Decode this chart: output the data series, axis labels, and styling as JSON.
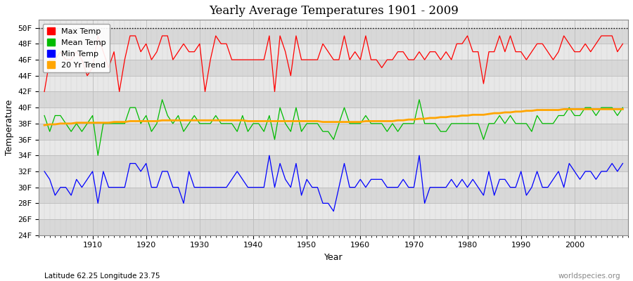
{
  "title": "Yearly Average Temperatures 1901 - 2009",
  "xlabel": "Year",
  "ylabel": "Temperature",
  "bottom_left": "Latitude 62.25 Longitude 23.75",
  "bottom_right": "worldspecies.org",
  "year_start": 1901,
  "year_end": 2009,
  "ylim": [
    24,
    51
  ],
  "yticks": [
    24,
    26,
    28,
    30,
    32,
    34,
    36,
    38,
    40,
    42,
    44,
    46,
    48,
    50
  ],
  "ytick_labels": [
    "24F",
    "26F",
    "28F",
    "30F",
    "32F",
    "34F",
    "36F",
    "38F",
    "40F",
    "42F",
    "44F",
    "46F",
    "48F",
    "50F"
  ],
  "dotted_line_y": 50,
  "fig_bg_color": "#ffffff",
  "plot_bg_color": "#e8e8e8",
  "max_temp_color": "#ff0000",
  "mean_temp_color": "#00bb00",
  "min_temp_color": "#0000ff",
  "trend_color": "#ffa500",
  "legend_labels": [
    "Max Temp",
    "Mean Temp",
    "Min Temp",
    "20 Yr Trend"
  ],
  "max_temp": [
    42,
    46,
    46,
    47,
    46,
    46,
    47,
    46,
    44,
    45,
    49,
    47,
    45,
    47,
    42,
    46,
    49,
    49,
    47,
    48,
    46,
    47,
    49,
    49,
    46,
    47,
    48,
    47,
    47,
    48,
    42,
    46,
    49,
    48,
    48,
    46,
    46,
    46,
    46,
    46,
    46,
    46,
    49,
    42,
    49,
    47,
    44,
    49,
    46,
    46,
    46,
    46,
    48,
    47,
    46,
    46,
    49,
    46,
    47,
    46,
    49,
    46,
    46,
    45,
    46,
    46,
    47,
    47,
    46,
    46,
    47,
    46,
    47,
    47,
    46,
    47,
    46,
    48,
    48,
    49,
    47,
    47,
    43,
    47,
    47,
    49,
    47,
    49,
    47,
    47,
    46,
    47,
    48,
    48,
    47,
    46,
    47,
    49,
    48,
    47,
    47,
    48,
    47,
    48,
    49,
    49,
    49,
    47,
    48
  ],
  "mean_temp": [
    39,
    37,
    39,
    39,
    38,
    37,
    38,
    37,
    38,
    39,
    34,
    38,
    38,
    38,
    38,
    38,
    40,
    40,
    38,
    39,
    37,
    38,
    41,
    39,
    38,
    39,
    37,
    38,
    39,
    38,
    38,
    38,
    39,
    38,
    38,
    38,
    37,
    39,
    37,
    38,
    38,
    37,
    39,
    36,
    40,
    38,
    37,
    40,
    37,
    38,
    38,
    38,
    37,
    37,
    36,
    38,
    40,
    38,
    38,
    38,
    39,
    38,
    38,
    38,
    37,
    38,
    37,
    38,
    38,
    38,
    41,
    38,
    38,
    38,
    37,
    37,
    38,
    38,
    38,
    38,
    38,
    38,
    36,
    38,
    38,
    39,
    38,
    39,
    38,
    38,
    38,
    37,
    39,
    38,
    38,
    38,
    39,
    39,
    40,
    39,
    39,
    40,
    40,
    39,
    40,
    40,
    40,
    39,
    40
  ],
  "min_temp": [
    32,
    31,
    29,
    30,
    30,
    29,
    31,
    30,
    31,
    32,
    28,
    32,
    30,
    30,
    30,
    30,
    33,
    33,
    32,
    33,
    30,
    30,
    32,
    32,
    30,
    30,
    28,
    32,
    30,
    30,
    30,
    30,
    30,
    30,
    30,
    31,
    32,
    31,
    30,
    30,
    30,
    30,
    34,
    30,
    33,
    31,
    30,
    33,
    29,
    31,
    30,
    30,
    28,
    28,
    27,
    30,
    33,
    30,
    30,
    31,
    30,
    31,
    31,
    31,
    30,
    30,
    30,
    31,
    30,
    30,
    34,
    28,
    30,
    30,
    30,
    30,
    31,
    30,
    31,
    30,
    31,
    30,
    29,
    32,
    29,
    31,
    31,
    30,
    30,
    32,
    29,
    30,
    32,
    30,
    30,
    31,
    32,
    30,
    33,
    32,
    31,
    32,
    32,
    31,
    32,
    32,
    33,
    32,
    33
  ],
  "trend": [
    37.8,
    37.9,
    37.9,
    38.0,
    38.0,
    38.0,
    38.1,
    38.1,
    38.1,
    38.1,
    38.1,
    38.1,
    38.1,
    38.2,
    38.2,
    38.2,
    38.3,
    38.3,
    38.3,
    38.3,
    38.3,
    38.3,
    38.4,
    38.4,
    38.4,
    38.4,
    38.4,
    38.4,
    38.4,
    38.4,
    38.4,
    38.4,
    38.4,
    38.4,
    38.4,
    38.4,
    38.4,
    38.4,
    38.3,
    38.3,
    38.3,
    38.3,
    38.3,
    38.3,
    38.3,
    38.3,
    38.3,
    38.3,
    38.3,
    38.3,
    38.3,
    38.3,
    38.2,
    38.2,
    38.2,
    38.2,
    38.2,
    38.2,
    38.2,
    38.2,
    38.3,
    38.3,
    38.3,
    38.3,
    38.3,
    38.3,
    38.4,
    38.4,
    38.5,
    38.5,
    38.6,
    38.6,
    38.7,
    38.7,
    38.8,
    38.8,
    38.9,
    38.9,
    39.0,
    39.0,
    39.1,
    39.1,
    39.1,
    39.2,
    39.3,
    39.3,
    39.4,
    39.4,
    39.5,
    39.5,
    39.6,
    39.6,
    39.7,
    39.7,
    39.7,
    39.7,
    39.7,
    39.8,
    39.8,
    39.8,
    39.8,
    39.8,
    39.8,
    39.8,
    39.8,
    39.8,
    39.8,
    39.8,
    39.8
  ]
}
